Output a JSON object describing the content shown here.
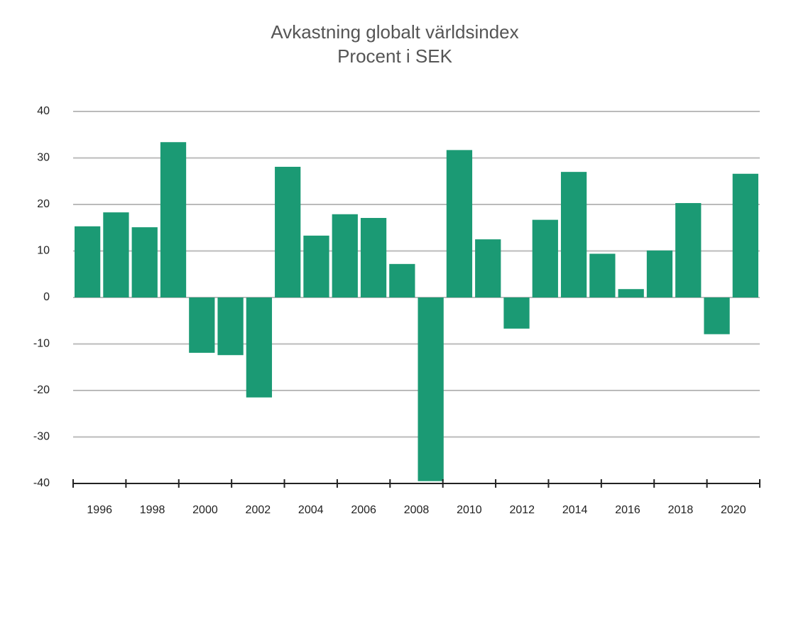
{
  "chart_data": {
    "type": "bar",
    "title": "Avkastning globalt världsindex",
    "subtitle": "Procent i SEK",
    "values": [
      15.3,
      18.3,
      15.1,
      33.4,
      -11.9,
      -12.4,
      -21.5,
      28.1,
      13.3,
      17.9,
      17.1,
      7.2,
      -39.5,
      31.7,
      12.5,
      -6.7,
      16.7,
      27.0,
      9.4,
      1.8,
      10.1,
      20.3,
      -7.9,
      26.6
    ],
    "color": "#1b9a74",
    "xticks": [
      "1996",
      "1998",
      "2000",
      "2002",
      "2004",
      "2006",
      "2008",
      "2010",
      "2012",
      "2014",
      "2016",
      "2018",
      "2020"
    ],
    "ylim": [
      -40,
      40
    ],
    "yticks": [
      -40,
      -30,
      -20,
      -10,
      0,
      10,
      20,
      30,
      40
    ],
    "grid": true
  }
}
